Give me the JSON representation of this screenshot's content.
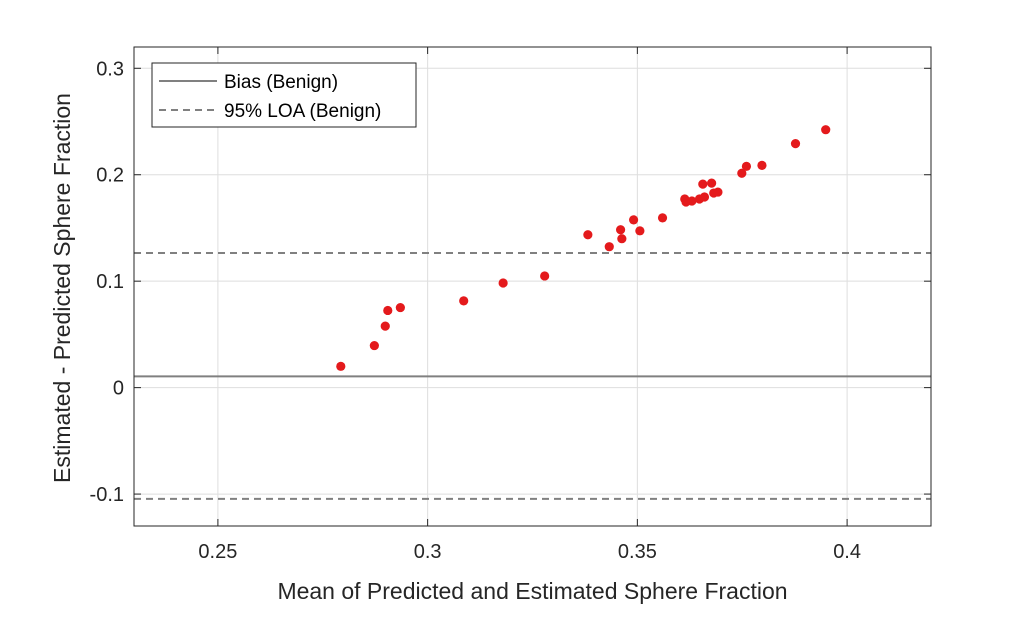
{
  "chart_data": {
    "type": "scatter",
    "xlabel": "Mean of Predicted and Estimated Sphere Fraction",
    "ylabel": "Estimated - Predicted Sphere Fraction",
    "xlim": [
      0.23,
      0.42
    ],
    "ylim": [
      -0.13,
      0.32
    ],
    "x_ticks": [
      0.25,
      0.3,
      0.35,
      0.4
    ],
    "x_tick_labels": [
      "0.25",
      "0.3",
      "0.35",
      "0.4"
    ],
    "y_ticks": [
      -0.1,
      0,
      0.1,
      0.2,
      0.3
    ],
    "y_tick_labels": [
      "-0.1",
      "0",
      "0.1",
      "0.2",
      "0.3"
    ],
    "grid": true,
    "legend_placement": "top-left",
    "reference_lines": [
      {
        "name": "Bias (Benign)",
        "style": "solid",
        "y": 0.0106,
        "color": "#808080"
      },
      {
        "name": "95% LOA (Benign)",
        "style": "dashed",
        "y": 0.1265,
        "color": "#808080"
      },
      {
        "name": "",
        "style": "dashed",
        "y": -0.1045,
        "color": "#808080"
      }
    ],
    "legend": [
      {
        "label": "Bias (Benign)",
        "style": "solid"
      },
      {
        "label": "95% LOA (Benign)",
        "style": "dashed"
      }
    ],
    "series": [
      {
        "color": "#e41a1c",
        "points": [
          {
            "x": 0.2793,
            "y": 0.02
          },
          {
            "x": 0.2873,
            "y": 0.0395
          },
          {
            "x": 0.2899,
            "y": 0.0578
          },
          {
            "x": 0.2905,
            "y": 0.0725
          },
          {
            "x": 0.2935,
            "y": 0.0752
          },
          {
            "x": 0.3086,
            "y": 0.0815
          },
          {
            "x": 0.318,
            "y": 0.0983
          },
          {
            "x": 0.3279,
            "y": 0.1049
          },
          {
            "x": 0.3382,
            "y": 0.1436
          },
          {
            "x": 0.3433,
            "y": 0.1324
          },
          {
            "x": 0.346,
            "y": 0.1483
          },
          {
            "x": 0.3463,
            "y": 0.1399
          },
          {
            "x": 0.3491,
            "y": 0.1576
          },
          {
            "x": 0.3506,
            "y": 0.1473
          },
          {
            "x": 0.356,
            "y": 0.1595
          },
          {
            "x": 0.3613,
            "y": 0.1772
          },
          {
            "x": 0.3616,
            "y": 0.1744
          },
          {
            "x": 0.363,
            "y": 0.1753
          },
          {
            "x": 0.3648,
            "y": 0.1772
          },
          {
            "x": 0.3656,
            "y": 0.1912
          },
          {
            "x": 0.366,
            "y": 0.1791
          },
          {
            "x": 0.3677,
            "y": 0.1921
          },
          {
            "x": 0.3682,
            "y": 0.1828
          },
          {
            "x": 0.3692,
            "y": 0.1837
          },
          {
            "x": 0.3749,
            "y": 0.2014
          },
          {
            "x": 0.376,
            "y": 0.2079
          },
          {
            "x": 0.3797,
            "y": 0.2088
          },
          {
            "x": 0.3877,
            "y": 0.2292
          },
          {
            "x": 0.3949,
            "y": 0.2423
          }
        ]
      }
    ]
  }
}
